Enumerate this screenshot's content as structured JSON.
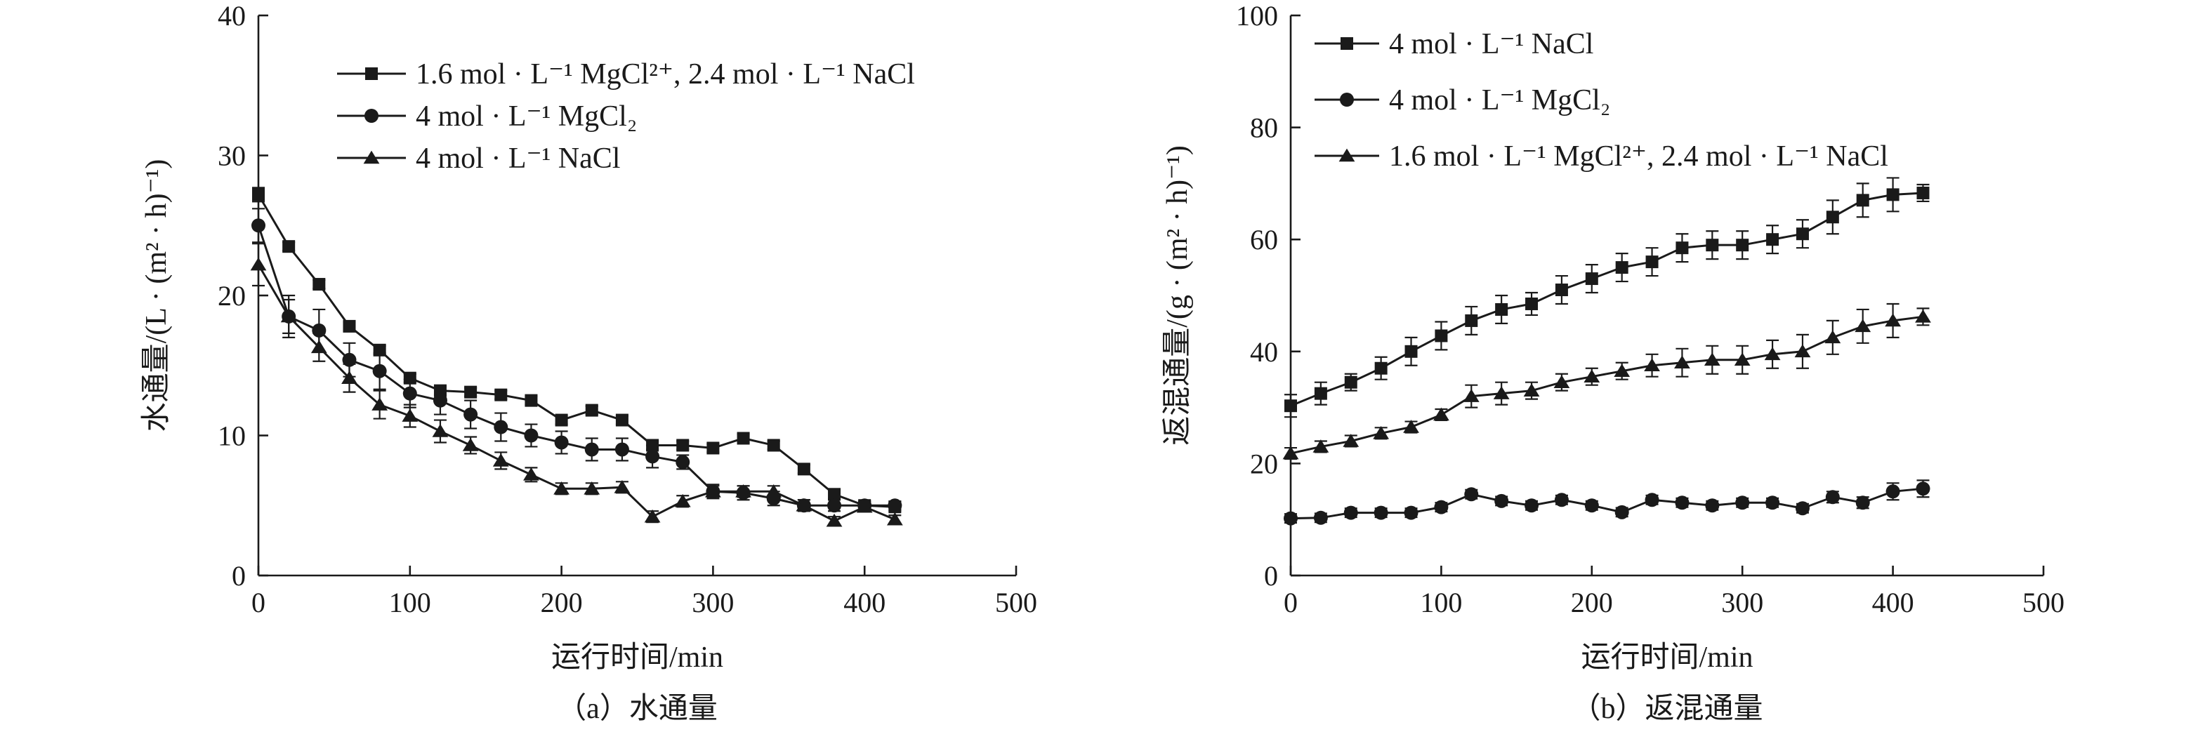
{
  "chart_data": [
    {
      "type": "line",
      "caption": "（a）水通量",
      "xlabel": "运行时间/min",
      "ylabel": "水通量/(L · (m² · h)⁻¹)",
      "xlim": [
        0,
        500
      ],
      "ylim": [
        0,
        40
      ],
      "xticks": [
        0,
        100,
        200,
        300,
        400,
        500
      ],
      "yticks": [
        0,
        10,
        20,
        30,
        40
      ],
      "legend_position": "top-right",
      "series": [
        {
          "name": "1.6 mol · L⁻¹ MgCl²⁺, 2.4 mol · L⁻¹ NaCl",
          "marker": "square",
          "x": [
            0,
            20,
            40,
            60,
            80,
            100,
            120,
            140,
            160,
            180,
            200,
            220,
            240,
            260,
            280,
            300,
            320,
            340,
            360,
            380,
            400,
            420
          ],
          "y": [
            27.2,
            23.5,
            20.8,
            17.8,
            16.1,
            14.1,
            13.2,
            13.1,
            12.9,
            12.5,
            11.1,
            11.8,
            11.1,
            9.3,
            9.3,
            9.1,
            9.8,
            9.3,
            7.6,
            5.8,
            5.0,
            4.9
          ],
          "err": [
            0.5,
            0.3,
            0.3,
            0.3,
            0.3,
            0.3,
            0.3,
            0.3,
            0.3,
            0.3,
            0.3,
            0.3,
            0.3,
            0.3,
            0.3,
            0.3,
            0.3,
            0.3,
            0.3,
            0.3,
            0.3,
            0.3
          ]
        },
        {
          "name": "4 mol · L⁻¹ MgCl₂",
          "marker": "circle",
          "x": [
            0,
            20,
            40,
            60,
            80,
            100,
            120,
            140,
            160,
            180,
            200,
            220,
            240,
            260,
            280,
            300,
            320,
            340,
            360,
            380,
            400,
            420
          ],
          "y": [
            25.0,
            18.5,
            17.5,
            15.4,
            14.6,
            13.0,
            12.5,
            11.5,
            10.6,
            10.0,
            9.5,
            9.0,
            9.0,
            8.5,
            8.1,
            6.0,
            5.9,
            5.5,
            5.0,
            5.0,
            5.0,
            5.0
          ],
          "err": [
            1.2,
            1.2,
            1.5,
            1.2,
            1.3,
            1.0,
            1.0,
            1.0,
            1.0,
            0.8,
            0.8,
            0.8,
            0.8,
            0.8,
            0.5,
            0.5,
            0.5,
            0.5,
            0.4,
            0.4,
            0.3,
            0.3
          ]
        },
        {
          "name": "4 mol · L⁻¹ NaCl",
          "marker": "triangle",
          "x": [
            0,
            20,
            40,
            60,
            80,
            100,
            120,
            140,
            160,
            180,
            200,
            220,
            240,
            260,
            280,
            300,
            320,
            340,
            360,
            380,
            400,
            420
          ],
          "y": [
            22.2,
            18.5,
            16.3,
            14.1,
            12.2,
            11.4,
            10.3,
            9.3,
            8.2,
            7.2,
            6.2,
            6.2,
            6.3,
            4.2,
            5.3,
            6.0,
            6.0,
            6.0,
            5.0,
            3.9,
            4.9,
            4.0
          ],
          "err": [
            1.5,
            1.5,
            1.0,
            1.0,
            1.0,
            0.8,
            0.8,
            0.6,
            0.6,
            0.5,
            0.4,
            0.4,
            0.4,
            0.4,
            0.4,
            0.4,
            0.4,
            0.4,
            0.4,
            0.3,
            0.3,
            0.3
          ]
        }
      ]
    },
    {
      "type": "line",
      "caption": "（b）返混通量",
      "xlabel": "运行时间/min",
      "ylabel": "返混通量/(g · (m² · h)⁻¹)",
      "xlim": [
        0,
        500
      ],
      "ylim": [
        0,
        100
      ],
      "xticks": [
        0,
        100,
        200,
        300,
        400,
        500
      ],
      "yticks": [
        0,
        20,
        40,
        60,
        80,
        100
      ],
      "legend_position": "top-left",
      "series": [
        {
          "name": "4 mol · L⁻¹ NaCl",
          "marker": "square",
          "x": [
            0,
            20,
            40,
            60,
            80,
            100,
            120,
            140,
            160,
            180,
            200,
            220,
            240,
            260,
            280,
            300,
            320,
            340,
            360,
            380,
            400,
            420
          ],
          "y": [
            30.3,
            32.5,
            34.5,
            37.0,
            40.0,
            42.8,
            45.5,
            47.5,
            48.5,
            51.0,
            53.0,
            55.0,
            56.0,
            58.5,
            59.0,
            59.0,
            60.0,
            61.0,
            64.0,
            67.0,
            68.0,
            68.3
          ],
          "err": [
            2.0,
            2.0,
            1.5,
            2.0,
            2.5,
            2.5,
            2.5,
            2.5,
            2.0,
            2.5,
            2.5,
            2.5,
            2.5,
            2.5,
            2.5,
            2.5,
            2.5,
            2.5,
            3.0,
            3.0,
            3.0,
            1.5
          ]
        },
        {
          "name": "4 mol · L⁻¹ MgCl₂",
          "marker": "circle",
          "x": [
            0,
            20,
            40,
            60,
            80,
            100,
            120,
            140,
            160,
            180,
            200,
            220,
            240,
            260,
            280,
            300,
            320,
            340,
            360,
            380,
            400,
            420
          ],
          "y": [
            10.2,
            10.3,
            11.2,
            11.2,
            11.2,
            12.2,
            14.5,
            13.3,
            12.5,
            13.5,
            12.5,
            11.3,
            13.5,
            13.0,
            12.5,
            13.0,
            13.0,
            12.0,
            14.0,
            13.0,
            15.0,
            15.5
          ],
          "err": [
            0.8,
            0.8,
            0.8,
            0.8,
            0.8,
            0.8,
            0.8,
            0.8,
            0.8,
            0.8,
            0.8,
            0.8,
            0.8,
            0.8,
            0.8,
            0.8,
            0.8,
            0.8,
            1.0,
            1.0,
            1.5,
            1.5
          ]
        },
        {
          "name": "1.6 mol · L⁻¹ MgCl²⁺, 2.4 mol · L⁻¹ NaCl",
          "marker": "triangle",
          "x": [
            0,
            20,
            40,
            60,
            80,
            100,
            120,
            140,
            160,
            180,
            200,
            220,
            240,
            260,
            280,
            300,
            320,
            340,
            360,
            380,
            400,
            420
          ],
          "y": [
            21.8,
            23.0,
            24.0,
            25.4,
            26.5,
            28.7,
            32.0,
            32.5,
            33.0,
            34.5,
            35.5,
            36.5,
            37.5,
            38.0,
            38.5,
            38.5,
            39.5,
            40.0,
            42.5,
            44.5,
            45.5,
            46.2
          ],
          "err": [
            1.0,
            1.0,
            1.0,
            1.0,
            1.0,
            1.0,
            2.0,
            2.0,
            1.5,
            1.5,
            1.5,
            1.5,
            2.0,
            2.5,
            2.5,
            2.5,
            2.5,
            3.0,
            3.0,
            3.0,
            3.0,
            1.5
          ]
        }
      ]
    }
  ]
}
